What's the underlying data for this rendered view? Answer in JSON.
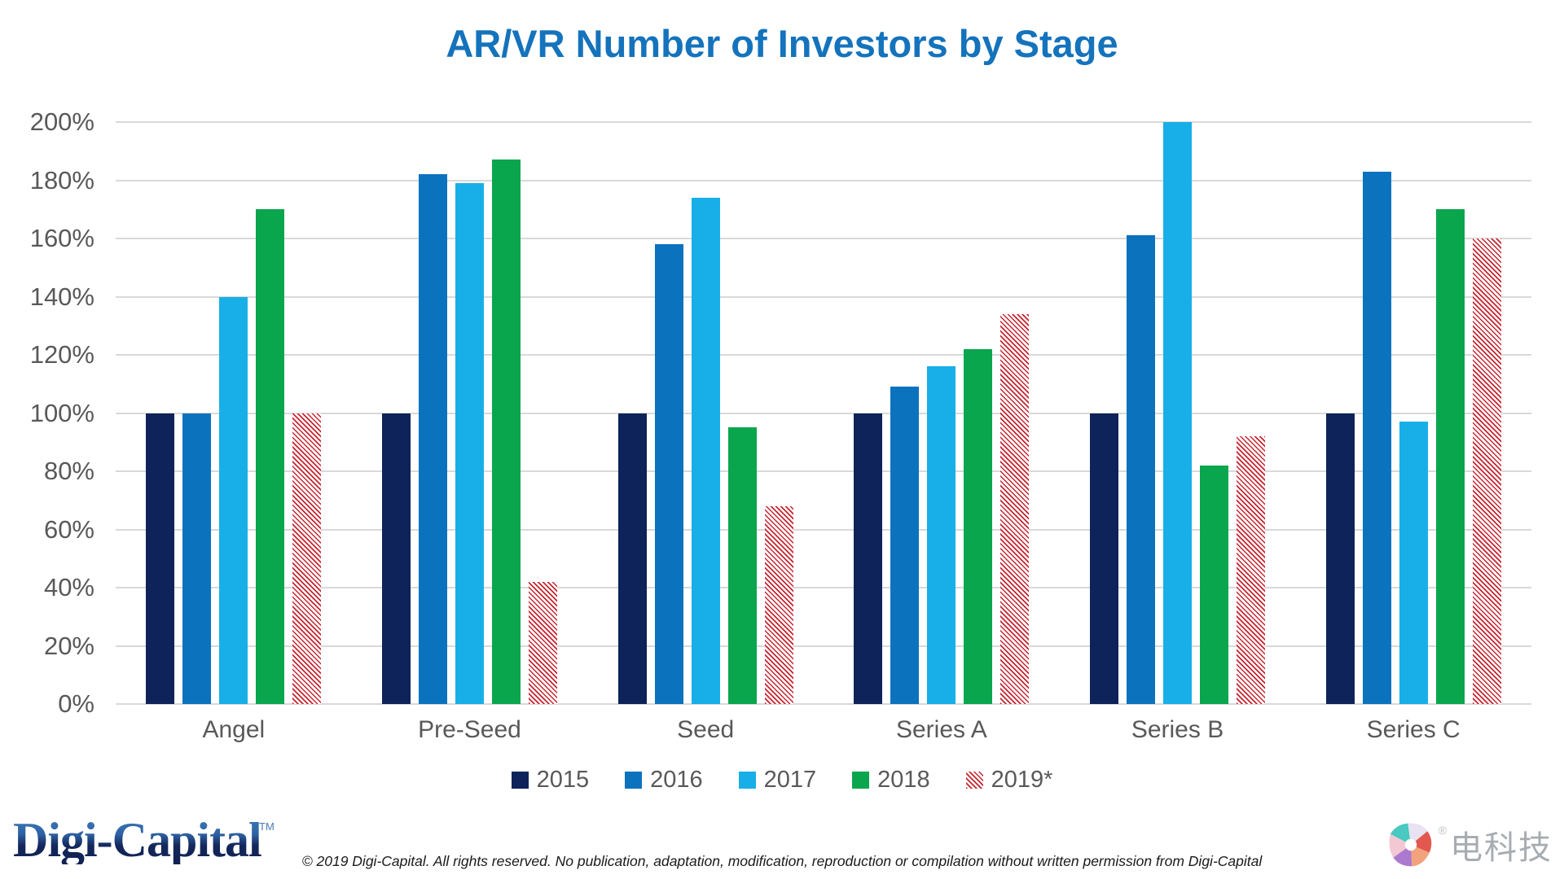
{
  "title": "AR/VR Number of Investors by Stage",
  "chart_data": {
    "type": "bar",
    "title": "AR/VR Number of Investors by Stage",
    "categories": [
      "Angel",
      "Pre-Seed",
      "Seed",
      "Series A",
      "Series B",
      "Series C"
    ],
    "series": [
      {
        "name": "2015",
        "color": "#0D2359",
        "hatch": false,
        "values": [
          100,
          100,
          100,
          100,
          100,
          100
        ]
      },
      {
        "name": "2016",
        "color": "#0B72BE",
        "hatch": false,
        "values": [
          100,
          182,
          158,
          109,
          161,
          183
        ]
      },
      {
        "name": "2017",
        "color": "#18AFE8",
        "hatch": false,
        "values": [
          140,
          179,
          174,
          116,
          200,
          97
        ]
      },
      {
        "name": "2018",
        "color": "#0AA64E",
        "hatch": false,
        "values": [
          170,
          187,
          95,
          122,
          82,
          170
        ]
      },
      {
        "name": "2019*",
        "color": "#C8232F",
        "hatch": true,
        "values": [
          100,
          42,
          68,
          134,
          92,
          160
        ]
      }
    ],
    "ylim": [
      0,
      200
    ],
    "ytick_step": 20,
    "ytick_labels": [
      "0%",
      "20%",
      "40%",
      "60%",
      "80%",
      "100%",
      "120%",
      "140%",
      "160%",
      "180%",
      "200%"
    ],
    "grid": true,
    "legend_position": "bottom",
    "xlabel": "",
    "ylabel": ""
  },
  "colors": {
    "title": "#1473BC",
    "axis_text": "#595959",
    "gridline": "#D9D9D9",
    "hatch_background": "#FFFFFF"
  },
  "footer": {
    "copyright": "© 2019 Digi-Capital. All rights reserved. No publication, adaptation, modification, reproduction or compilation without written permission from Digi-Capital"
  },
  "logos": {
    "digi_capital": {
      "text": "Digi-Capital",
      "trademark": "TM"
    },
    "diankeji": {
      "text": "电科技",
      "registered": "®"
    }
  }
}
